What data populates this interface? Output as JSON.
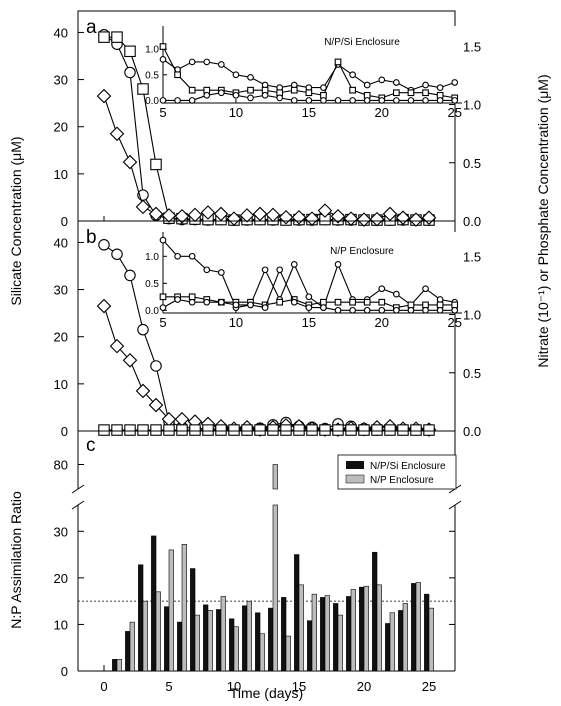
{
  "figure": {
    "xlabel": "Time (days)",
    "left_ylabel_top": "Silicate Concentration (μM)",
    "right_ylabel_top": "Nitrate (10⁻¹) or Phosphate Concentration (μM)",
    "bottom_ylabel": "N:P Assimilation Ratio",
    "panel_labels": [
      "a",
      "b",
      "c"
    ],
    "colors": {
      "black_bar": "#111111",
      "gray_bar": "#bdbdbd",
      "line": "#000000"
    }
  },
  "chart_data": [
    {
      "type": "line",
      "panel": "a",
      "xlim": [
        -2,
        27
      ],
      "xticks": [
        0,
        5,
        10,
        15,
        20,
        25
      ],
      "left_ylim": [
        0,
        42
      ],
      "left_yticks": [
        0,
        10,
        20,
        30,
        40
      ],
      "right_ylim": [
        0,
        1.7
      ],
      "right_yticks": [
        "0.0",
        "0.5",
        "1.0",
        "1.5"
      ],
      "series": [
        {
          "marker": "circle",
          "x": [
            0,
            1,
            2,
            3,
            4,
            5,
            6,
            7,
            8,
            9,
            10,
            11,
            12,
            13,
            14,
            15,
            16,
            17,
            18,
            19,
            20,
            21,
            22,
            23,
            24,
            25
          ],
          "values": [
            39.5,
            37.5,
            31.5,
            5.5,
            1.2,
            0.5,
            0.3,
            0.3,
            0.2,
            0.3,
            0.2,
            0.2,
            0.3,
            0.2,
            0.3,
            0.2,
            0.2,
            0.3,
            0.2,
            0.2,
            0.2,
            0.2,
            0.2,
            0.2,
            0.2,
            0.2
          ]
        },
        {
          "marker": "square",
          "x": [
            0,
            1,
            2,
            3,
            4,
            5,
            6,
            7,
            8,
            9,
            10,
            11,
            12,
            13,
            14,
            15,
            16,
            17,
            18,
            19,
            20,
            21,
            22,
            23,
            24,
            25
          ],
          "values": [
            39,
            39,
            36,
            28,
            12,
            0.6,
            0.5,
            0.4,
            0.3,
            0.3,
            0.2,
            0.3,
            0.3,
            0.3,
            0.2,
            0.3,
            0.3,
            0.3,
            0.3,
            0.3,
            0.2,
            0.2,
            0.2,
            0.3,
            0.2,
            0.2
          ]
        },
        {
          "marker": "diamond",
          "x": [
            0,
            1,
            2,
            3,
            4,
            5,
            6,
            7,
            8,
            9,
            10,
            11,
            12,
            13,
            14,
            15,
            16,
            17,
            18,
            19,
            20,
            21,
            22,
            23,
            24,
            25
          ],
          "values": [
            26.5,
            18.5,
            12.5,
            3,
            1.5,
            1.2,
            1,
            1.3,
            1.8,
            1.5,
            0.5,
            1.2,
            1.5,
            1.3,
            0.8,
            0.8,
            0.5,
            2.2,
            1,
            0.5,
            0.3,
            0.4,
            1.5,
            0.7,
            0.3,
            0.7
          ]
        }
      ]
    },
    {
      "type": "line",
      "panel": "a-inset",
      "title": "N/P/Si Enclosure",
      "xlim": [
        5,
        25.5
      ],
      "xticks": [
        5,
        10,
        15,
        20,
        25
      ],
      "ylim": [
        -0.05,
        1.45
      ],
      "yticks": [
        "0.0",
        "0.5",
        "1.0",
        "1.5"
      ],
      "series": [
        {
          "marker": "circle",
          "x": [
            5,
            6,
            7,
            8,
            9,
            10,
            11,
            12,
            13,
            14,
            15,
            16,
            17,
            18,
            19,
            20,
            21,
            22,
            23,
            24,
            25
          ],
          "values": [
            0.8,
            0.6,
            0.75,
            0.75,
            0.7,
            0.5,
            0.45,
            0.3,
            0.25,
            0.3,
            0.25,
            0.25,
            0.7,
            0.5,
            0.3,
            0.4,
            0.35,
            0.2,
            0.3,
            0.25,
            0.35
          ]
        },
        {
          "marker": "square",
          "x": [
            5,
            6,
            7,
            8,
            9,
            10,
            11,
            12,
            13,
            14,
            15,
            16,
            17,
            18,
            19,
            20,
            21,
            22,
            23,
            24,
            25
          ],
          "values": [
            1.05,
            0.5,
            0.2,
            0.2,
            0.2,
            0.15,
            0.2,
            0.2,
            0.15,
            0.2,
            0.15,
            0.1,
            0.75,
            0.2,
            0.1,
            0.05,
            0.15,
            0.15,
            0.15,
            0.1,
            0.05
          ]
        },
        {
          "marker": "circle",
          "x": [
            5,
            6,
            7,
            8,
            9,
            10,
            11,
            12,
            13,
            14,
            15,
            16,
            17,
            18,
            19,
            20,
            21,
            22,
            23,
            24,
            25
          ],
          "values": [
            0,
            0,
            0,
            0.1,
            0.15,
            0.1,
            0.05,
            0.1,
            0.05,
            0,
            0,
            0,
            0,
            0,
            0,
            0,
            0,
            0,
            0,
            0,
            0
          ]
        }
      ]
    },
    {
      "type": "line",
      "panel": "b",
      "xlim": [
        -2,
        27
      ],
      "xticks": [
        0,
        5,
        10,
        15,
        20,
        25
      ],
      "left_ylim": [
        0,
        42
      ],
      "left_yticks": [
        0,
        10,
        20,
        30,
        40
      ],
      "right_ylim": [
        0,
        1.7
      ],
      "right_yticks": [
        "0.0",
        "0.5",
        "1.0",
        "1.5"
      ],
      "series": [
        {
          "marker": "circle",
          "x": [
            0,
            1,
            2,
            3,
            4,
            5,
            6,
            7,
            8,
            9,
            10,
            11,
            12,
            13,
            14,
            15,
            16,
            17,
            18,
            19,
            20,
            21,
            22,
            23,
            24,
            25
          ],
          "values": [
            39.5,
            37.5,
            33,
            21.5,
            13.8,
            2,
            0.8,
            0.6,
            0.4,
            0.5,
            0.3,
            0.2,
            0.6,
            1.3,
            1.8,
            1,
            0.8,
            0.5,
            1.5,
            1,
            0.5,
            0.2,
            0.3,
            0.4,
            0.3,
            0.2
          ]
        },
        {
          "marker": "diamond",
          "x": [
            0,
            1,
            2,
            3,
            4,
            5,
            6,
            7,
            8,
            9,
            10,
            11,
            12,
            13,
            14,
            15,
            16,
            17,
            18,
            19,
            20,
            21,
            22,
            23,
            24,
            25
          ],
          "values": [
            26.5,
            18,
            15,
            8.5,
            5.5,
            2.5,
            2.5,
            2,
            1.5,
            1,
            0.5,
            0.8,
            0.3,
            0.8,
            1.2,
            1,
            0.5,
            0.3,
            0.3,
            0.6,
            0.4,
            0.8,
            1,
            0.5,
            0.5,
            0.3
          ]
        },
        {
          "marker": "square",
          "x": [
            0,
            1,
            2,
            3,
            4,
            5,
            6,
            7,
            8,
            9,
            10,
            11,
            12,
            13,
            14,
            15,
            16,
            17,
            18,
            19,
            20,
            21,
            22,
            23,
            24,
            25
          ],
          "values": [
            0.2,
            0.2,
            0.2,
            0.2,
            0.2,
            0.2,
            0.2,
            0.2,
            0.2,
            0.2,
            0.2,
            0.2,
            0.2,
            0.2,
            0.2,
            0.2,
            0.2,
            0.2,
            0.2,
            0.2,
            0.2,
            0.2,
            0.2,
            0.2,
            0.2,
            0.2
          ]
        }
      ]
    },
    {
      "type": "line",
      "panel": "b-inset",
      "title": "N/P Enclosure",
      "xlim": [
        5,
        25.5
      ],
      "xticks": [
        5,
        10,
        15,
        20,
        25
      ],
      "ylim": [
        -0.05,
        1.45
      ],
      "yticks": [
        "0.0",
        "0.5",
        "1.0",
        "1.5"
      ],
      "series": [
        {
          "marker": "circle",
          "x": [
            5,
            6,
            7,
            8,
            9,
            10,
            11,
            12,
            13,
            14,
            15,
            16,
            17,
            18,
            19,
            20,
            21,
            22,
            23,
            24,
            25
          ],
          "values": [
            1.3,
            1.0,
            1.0,
            0.75,
            0.7,
            0.05,
            0.1,
            0.75,
            0.2,
            0.85,
            0.25,
            0.05,
            0.85,
            0.2,
            0.2,
            0.4,
            0.3,
            0.1,
            0.4,
            0.2,
            0.15
          ]
        },
        {
          "marker": "square",
          "x": [
            5,
            6,
            7,
            8,
            9,
            10,
            11,
            12,
            13,
            14,
            15,
            16,
            17,
            18,
            19,
            20,
            21,
            22,
            23,
            24,
            25
          ],
          "values": [
            0.25,
            0.25,
            0.25,
            0.2,
            0.15,
            0.15,
            0.15,
            0.1,
            0.15,
            0.2,
            0.1,
            0.15,
            0.15,
            0.15,
            0.15,
            0.15,
            0.05,
            0.1,
            0.1,
            0.1,
            0.1
          ]
        },
        {
          "marker": "circle",
          "x": [
            5,
            6,
            7,
            8,
            9,
            10,
            11,
            12,
            13,
            14,
            15,
            16,
            17,
            18,
            19,
            20,
            21,
            22,
            23,
            24,
            25
          ],
          "values": [
            0.05,
            0.2,
            0.15,
            0.15,
            0.15,
            0.1,
            0.1,
            0.05,
            0.75,
            0.15,
            0.05,
            0.05,
            0,
            0,
            0,
            0,
            0,
            0,
            0,
            0,
            0
          ]
        }
      ]
    },
    {
      "type": "bar",
      "panel": "c",
      "xlim": [
        -2,
        27
      ],
      "xticks": [
        0,
        5,
        10,
        15,
        20,
        25
      ],
      "yticks_lower": [
        0,
        10,
        20,
        30
      ],
      "yticks_upper": [
        80
      ],
      "ylim_lower": [
        0,
        35
      ],
      "ylim_upper": [
        75,
        85
      ],
      "reference_line": 15,
      "legend": [
        "N/P/Si Enclosure",
        "N/P Enclosure"
      ],
      "legend_position": "top-right",
      "x": [
        1,
        2,
        3,
        4,
        5,
        6,
        7,
        8,
        9,
        10,
        11,
        12,
        13,
        14,
        15,
        16,
        17,
        18,
        19,
        20,
        21,
        22,
        23,
        24,
        25
      ],
      "series": [
        {
          "name": "N/P/Si Enclosure",
          "values": [
            2.5,
            8.5,
            22.8,
            29,
            13.8,
            10.5,
            22,
            14.2,
            13.2,
            11.2,
            14,
            12.5,
            13.5,
            15.8,
            25,
            10.8,
            15.8,
            14.5,
            16,
            18,
            25.5,
            10.2,
            13,
            18.8,
            16.5
          ]
        },
        {
          "name": "N/P Enclosure",
          "values": [
            2.5,
            10.5,
            15,
            17,
            26,
            27.2,
            12,
            13,
            16,
            9.5,
            15,
            8,
            80,
            7.5,
            18.5,
            16.5,
            16.2,
            12,
            17.5,
            18.2,
            18.5,
            12.5,
            14.5,
            19,
            13.5
          ]
        }
      ]
    }
  ]
}
